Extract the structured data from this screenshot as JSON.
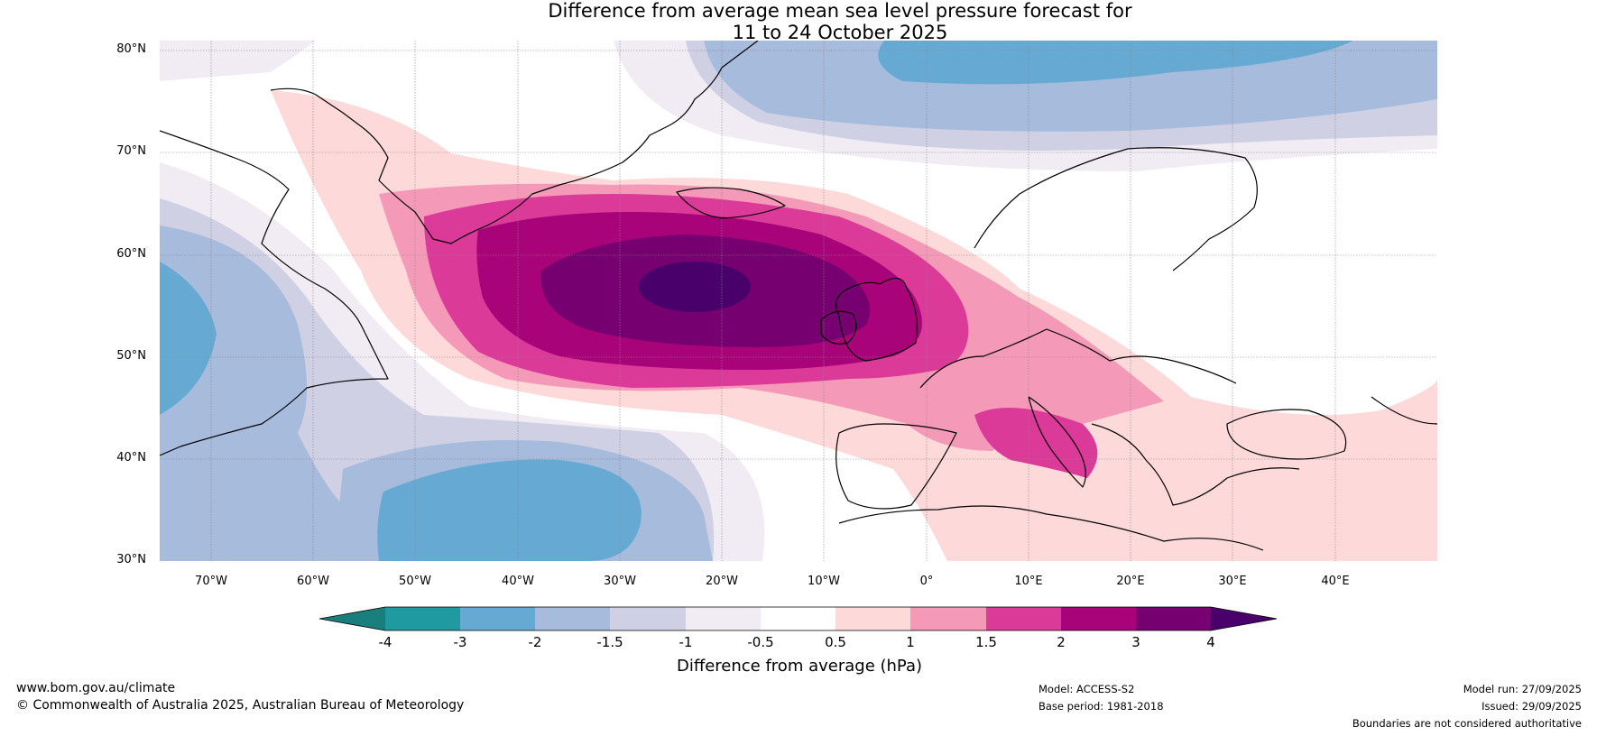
{
  "title": {
    "line1": "Difference from average mean sea level pressure forecast for",
    "line2": "11 to 24 October 2025"
  },
  "map": {
    "projection": "equirectangular",
    "lon_range": [
      -75,
      50
    ],
    "lat_range": [
      30,
      81
    ],
    "lat_labels": [
      "80°N",
      "70°N",
      "60°N",
      "50°N",
      "40°N",
      "30°N"
    ],
    "lon_labels": [
      "70°W",
      "60°W",
      "50°W",
      "40°W",
      "30°W",
      "20°W",
      "10°W",
      "0°",
      "10°E",
      "20°E",
      "30°E",
      "40°E"
    ],
    "anomaly_centre": {
      "lon": -22,
      "lat": 57,
      "value_class": "above 4 hPa"
    },
    "coastline_color": "#000000",
    "border_color": "#808080"
  },
  "colorbar": {
    "levels": [
      "-4",
      "-3",
      "-2",
      "-1.5",
      "-1",
      "-0.5",
      "0.5",
      "1",
      "1.5",
      "2",
      "3",
      "4"
    ],
    "colors": [
      "#1a7f7c",
      "#1f9aa0",
      "#66aad3",
      "#a7bbdd",
      "#d0d0e5",
      "#f1ecf4",
      "#ffffff",
      "#fdd9d9",
      "#f49ab8",
      "#dc3a98",
      "#a9037a",
      "#770070",
      "#4a006a"
    ],
    "label": "Difference from average (hPa)"
  },
  "footer": {
    "website": "www.bom.gov.au/climate",
    "copyright": "© Commonwealth of Australia 2025, Australian Bureau of Meteorology",
    "model": "Model: ACCESS-S2",
    "base_period": "Base period: 1981-2018",
    "model_run": "Model run: 27/09/2025",
    "issued": "Issued: 29/09/2025",
    "disclaimer": "Boundaries are not considered authoritative"
  }
}
